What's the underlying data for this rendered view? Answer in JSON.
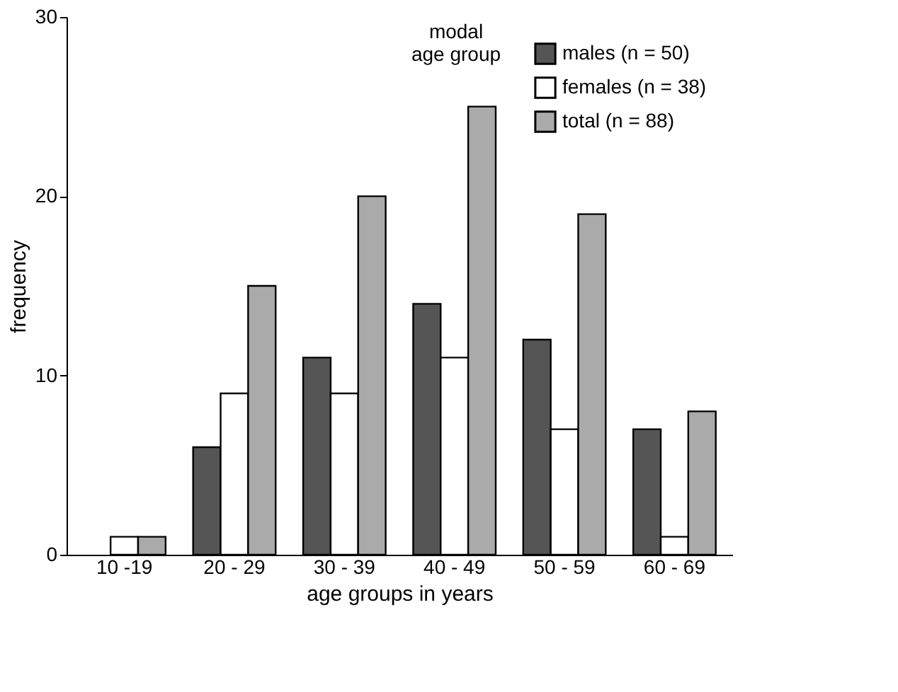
{
  "chart_data": {
    "type": "bar",
    "xlabel": "age groups in years",
    "ylabel": "frequency",
    "categories": [
      "10 -19",
      "20 - 29",
      "30 - 39",
      "40 - 49",
      "50 - 59",
      "60 - 69"
    ],
    "series": [
      {
        "name": "males (n = 50)",
        "color": "#555555",
        "values": [
          null,
          6,
          11,
          14,
          12,
          7
        ]
      },
      {
        "name": "females (n = 38)",
        "color": "#ffffff",
        "values": [
          1,
          9,
          9,
          11,
          7,
          1
        ]
      },
      {
        "name": "total (n = 88)",
        "color": "#aaaaaa",
        "values": [
          1,
          15,
          20,
          25,
          19,
          8
        ]
      }
    ],
    "ylim": [
      0,
      30
    ],
    "yticks": [
      0,
      10,
      20,
      30
    ],
    "grid": false,
    "legend": "top right",
    "annotations": [
      "modal age group"
    ]
  }
}
